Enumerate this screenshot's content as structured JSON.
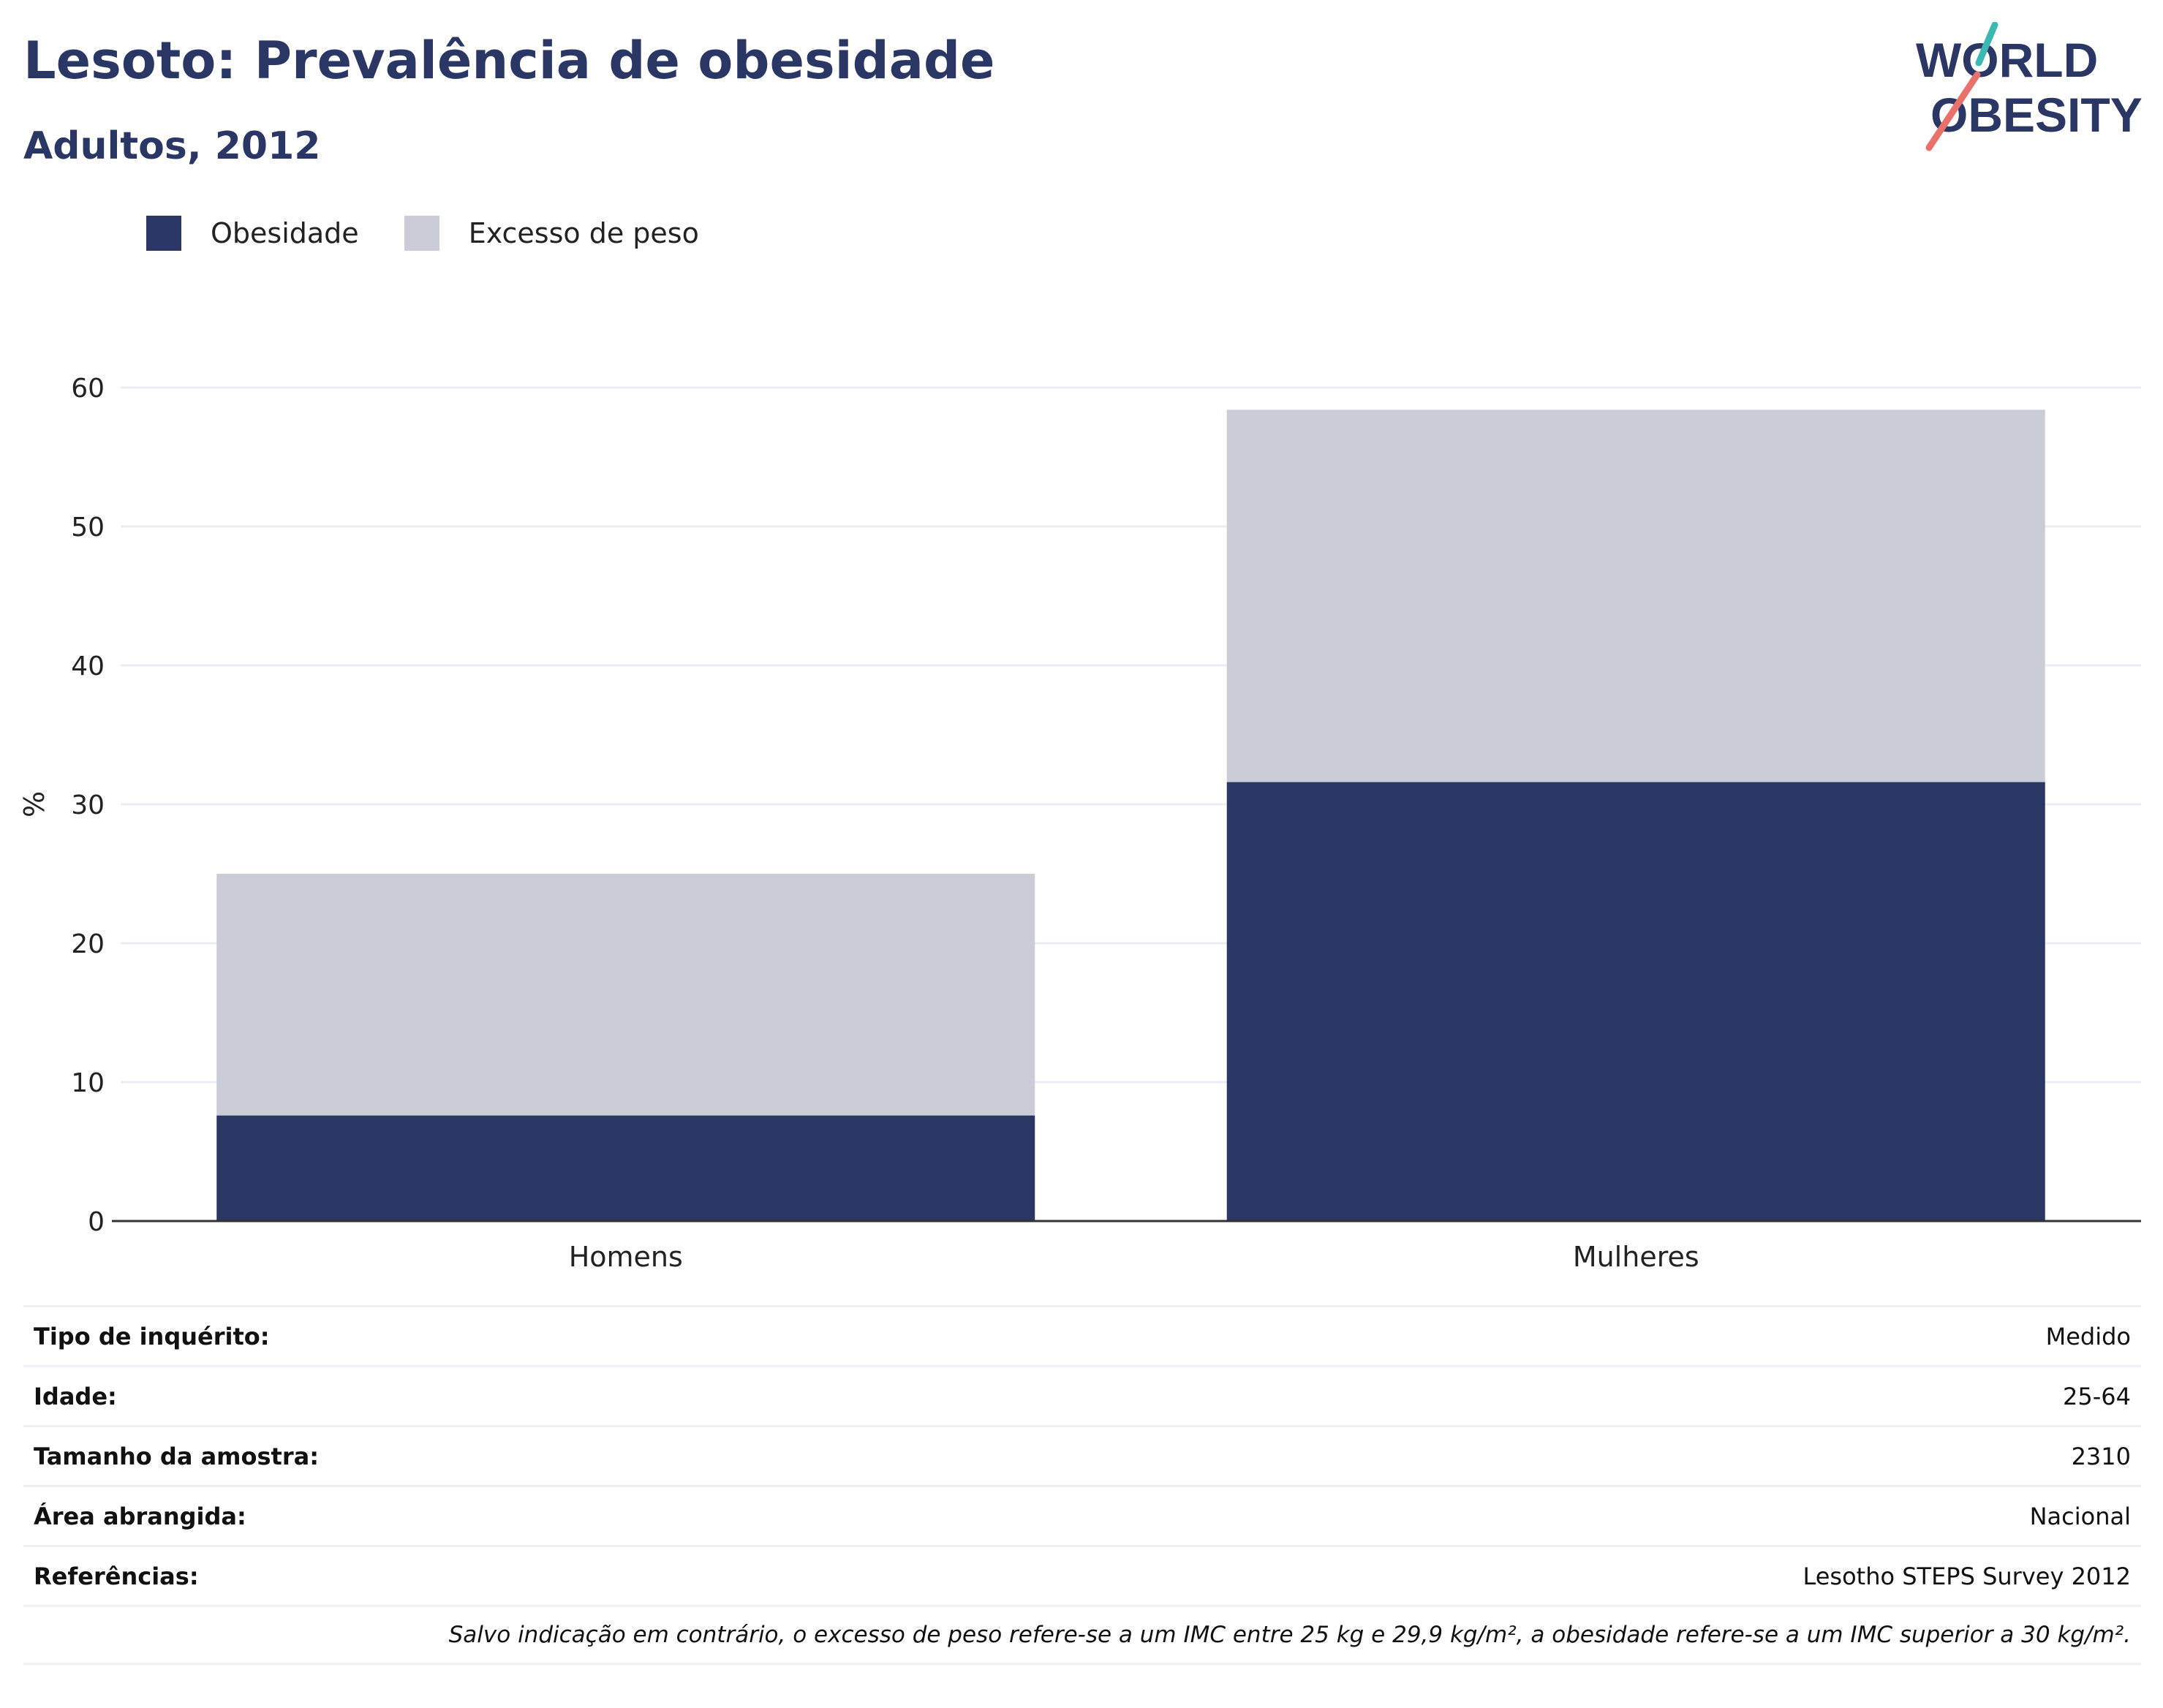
{
  "header": {
    "title": "Lesoto: Prevalência de obesidade",
    "subtitle": "Adultos, 2012"
  },
  "logo": {
    "line1": "WORLD",
    "line2": "OBESITY"
  },
  "colors": {
    "obesity": "#2a3663",
    "overweight": "#cacdd8",
    "grid": "#ebedf3",
    "axis": "#333333",
    "text": "#222222"
  },
  "chart_data": {
    "type": "bar",
    "stacked": true,
    "categories": [
      "Homens",
      "Mulheres"
    ],
    "series": [
      {
        "name": "Obesidade",
        "values": [
          7.6,
          31.6
        ]
      },
      {
        "name": "Excesso de peso",
        "values": [
          17.4,
          26.8
        ]
      }
    ],
    "ylabel": "%",
    "ylim": [
      0,
      60
    ],
    "yticks": [
      0,
      10,
      20,
      30,
      40,
      50,
      60
    ],
    "grid": true,
    "legend": "top-left"
  },
  "info": {
    "rows": [
      {
        "label": "Tipo de inquérito:",
        "value": "Medido"
      },
      {
        "label": "Idade:",
        "value": "25-64"
      },
      {
        "label": "Tamanho da amostra:",
        "value": "2310"
      },
      {
        "label": "Área abrangida:",
        "value": "Nacional"
      },
      {
        "label": "Referências:",
        "value": "Lesotho STEPS Survey 2012"
      }
    ],
    "note": "Salvo indicação em contrário, o excesso de peso refere-se a um IMC entre 25 kg e 29,9 kg/m², a obesidade refere-se a um IMC superior a 30 kg/m²."
  }
}
